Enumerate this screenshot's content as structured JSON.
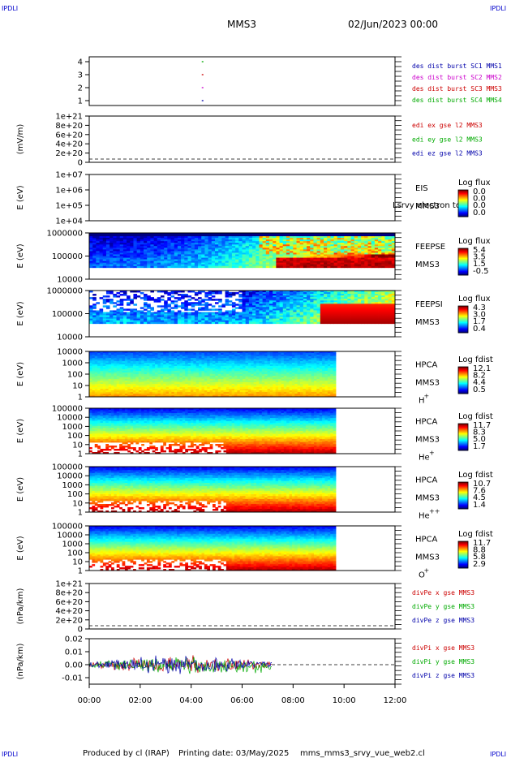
{
  "header": {
    "corner_left_top": "IPDLI",
    "corner_right_top": "IPDLI",
    "corner_left_bottom": "IPDLI",
    "corner_right_bottom": "IPDLI",
    "spacecraft": "MMS3",
    "date": "02/Jun/2023 00:00"
  },
  "footer": {
    "produced_by": "Produced by cl (IRAP)",
    "printing_date": "Printing date: 03/May/2025",
    "script_name": "mms_mms3_srvy_vue_web2.cl"
  },
  "chart_data": [
    {
      "type": "scatter",
      "panel": "burst",
      "yticks": [
        "1",
        "2",
        "3",
        "4"
      ],
      "legend": [
        {
          "label": "des dist burst SC1 MMS1",
          "color": "#0000aa"
        },
        {
          "label": "des dist burst SC2 MMS2",
          "color": "#cc00cc"
        },
        {
          "label": "des dist burst SC3 MMS3",
          "color": "#cc0000"
        },
        {
          "label": "des dist burst SC4 MMS4",
          "color": "#00aa00"
        }
      ],
      "series": [
        {
          "name": "des dist burst SC1 MMS1",
          "x": [
            "04:25"
          ],
          "y": [
            1
          ]
        },
        {
          "name": "des dist burst SC2 MMS2",
          "x": [
            "04:25"
          ],
          "y": [
            2
          ]
        },
        {
          "name": "des dist burst SC3 MMS3",
          "x": [
            "04:25"
          ],
          "y": [
            3
          ]
        },
        {
          "name": "des dist burst SC4 MMS4",
          "x": [
            "04:25"
          ],
          "y": [
            4
          ]
        }
      ]
    },
    {
      "type": "line",
      "panel": "edi",
      "ylabel": "(mV/m)",
      "yticks": [
        "0",
        "2e+20",
        "4e+20",
        "6e+20",
        "8e+20",
        "1e+21"
      ],
      "legend": [
        {
          "label": "edi ex gse l2 MMS3",
          "color": "#cc0000"
        },
        {
          "label": "edi ey gse l2 MMS3",
          "color": "#00aa00"
        },
        {
          "label": "edi ez gse l2 MMS3",
          "color": "#0000aa"
        }
      ]
    },
    {
      "type": "heatmap",
      "panel": "eis",
      "ylabel": "E (eV)",
      "yticks": [
        "1e+04",
        "1e+05",
        "1e+06",
        "1e+07"
      ],
      "label_lines": [
        "EIS",
        "MMS3"
      ],
      "overlay_text": "Lsrvy electron to",
      "colorbar_title": "Log flux",
      "colorbar_ticks": [
        "0.0",
        "0.0",
        "0.0",
        "0.0"
      ]
    },
    {
      "type": "heatmap",
      "panel": "feeps_e",
      "ylabel": "E (eV)",
      "yticks": [
        "10000",
        "100000",
        "1000000"
      ],
      "label_lines": [
        "FEEPSE",
        "MMS3"
      ],
      "colorbar_title": "Log flux",
      "colorbar_ticks": [
        "5.4",
        "3.5",
        "1.5",
        "-0.5"
      ]
    },
    {
      "type": "heatmap",
      "panel": "feeps_i",
      "ylabel": "E (eV)",
      "yticks": [
        "10000",
        "100000",
        "1000000"
      ],
      "label_lines": [
        "FEEPSI",
        "MMS3"
      ],
      "colorbar_title": "Log flux",
      "colorbar_ticks": [
        "4.3",
        "3.0",
        "1.7",
        "0.4"
      ]
    },
    {
      "type": "heatmap",
      "panel": "hpca_h",
      "ylabel": "E (eV)",
      "yticks": [
        "1",
        "10",
        "100",
        "1000",
        "10000"
      ],
      "label_lines": [
        "HPCA",
        "MMS3"
      ],
      "species": "H",
      "species_charge": "+",
      "colorbar_title": "Log fdist",
      "colorbar_ticks": [
        "12.1",
        "8.2",
        "4.4",
        "0.5"
      ]
    },
    {
      "type": "heatmap",
      "panel": "hpca_he",
      "ylabel": "E (eV)",
      "yticks": [
        "1",
        "10",
        "100",
        "1000",
        "10000",
        "100000"
      ],
      "label_lines": [
        "HPCA",
        "MMS3"
      ],
      "species": "He",
      "species_charge": "+",
      "colorbar_title": "Log fdist",
      "colorbar_ticks": [
        "11.7",
        "8.3",
        "5.0",
        "1.7"
      ]
    },
    {
      "type": "heatmap",
      "panel": "hpca_hepp",
      "ylabel": "E (eV)",
      "yticks": [
        "1",
        "10",
        "100",
        "1000",
        "10000",
        "100000"
      ],
      "label_lines": [
        "HPCA",
        "MMS3"
      ],
      "species": "He",
      "species_charge": "++",
      "colorbar_title": "Log fdist",
      "colorbar_ticks": [
        "10.7",
        "7.6",
        "4.5",
        "1.4"
      ]
    },
    {
      "type": "heatmap",
      "panel": "hpca_o",
      "ylabel": "E (eV)",
      "yticks": [
        "1",
        "10",
        "100",
        "1000",
        "10000",
        "100000"
      ],
      "label_lines": [
        "HPCA",
        "MMS3"
      ],
      "species": "O",
      "species_charge": "+",
      "colorbar_title": "Log fdist",
      "colorbar_ticks": [
        "11.7",
        "8.8",
        "5.8",
        "2.9"
      ]
    },
    {
      "type": "line",
      "panel": "divpe",
      "ylabel": "(nPa/km)",
      "yticks": [
        "0",
        "2e+20",
        "4e+20",
        "6e+20",
        "8e+20",
        "1e+21"
      ],
      "legend": [
        {
          "label": "divPe x gse MMS3",
          "color": "#cc0000"
        },
        {
          "label": "divPe y gse MMS3",
          "color": "#00aa00"
        },
        {
          "label": "divPe z gse MMS3",
          "color": "#0000aa"
        }
      ]
    },
    {
      "type": "line",
      "panel": "divpi",
      "ylabel": "(nPa/km)",
      "yticks": [
        "-0.01",
        "0.00",
        "0.01",
        "0.02"
      ],
      "ylim": [
        -0.015,
        0.02
      ],
      "legend": [
        {
          "label": "divPi x gse MMS3",
          "color": "#cc0000"
        },
        {
          "label": "divPi y gse MMS3",
          "color": "#00aa00"
        },
        {
          "label": "divPi z gse MMS3",
          "color": "#0000aa"
        }
      ]
    }
  ],
  "time_axis": {
    "ticks": [
      "00:00",
      "02:00",
      "04:00",
      "06:00",
      "08:00",
      "10:00",
      "12:00"
    ]
  },
  "colors": {
    "burst_sc1": "#0000aa",
    "burst_sc2": "#cc00cc",
    "burst_sc3": "#cc0000",
    "burst_sc4": "#00aa00"
  }
}
